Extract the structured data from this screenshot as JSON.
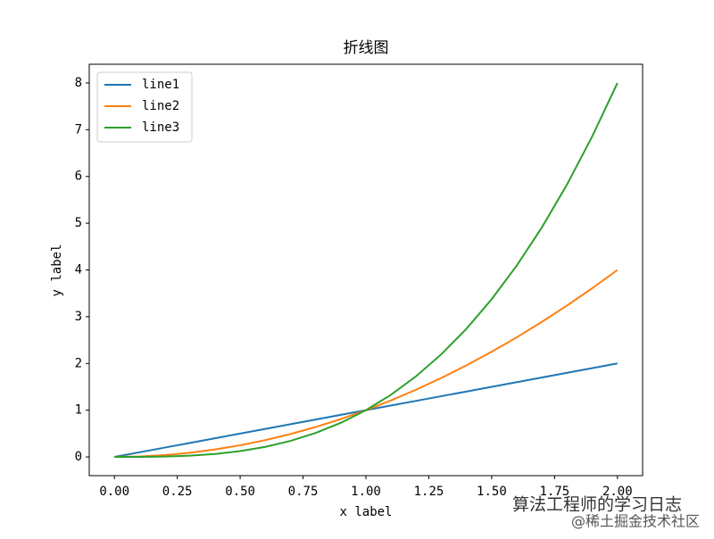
{
  "chart_data": {
    "type": "line",
    "title": "折线图",
    "xlabel": "x label",
    "ylabel": "y label",
    "x": [
      0,
      0.1,
      0.2,
      0.3,
      0.4,
      0.5,
      0.6,
      0.7,
      0.8,
      0.9,
      1,
      1.1,
      1.2,
      1.3,
      1.4,
      1.5,
      1.6,
      1.7,
      1.8,
      1.9,
      2
    ],
    "series": [
      {
        "name": "line1",
        "color": "#1f77b4",
        "values": [
          0,
          0.1,
          0.2,
          0.3,
          0.4,
          0.5,
          0.6,
          0.7,
          0.8,
          0.9,
          1,
          1.1,
          1.2,
          1.3,
          1.4,
          1.5,
          1.6,
          1.7,
          1.8,
          1.9,
          2
        ]
      },
      {
        "name": "line2",
        "color": "#ff7f0e",
        "values": [
          0,
          0.01,
          0.04,
          0.09,
          0.16,
          0.25,
          0.36,
          0.49,
          0.64,
          0.81,
          1,
          1.21,
          1.44,
          1.69,
          1.96,
          2.25,
          2.56,
          2.89,
          3.24,
          3.61,
          4
        ]
      },
      {
        "name": "line3",
        "color": "#2ca02c",
        "values": [
          0,
          0.001,
          0.008,
          0.027,
          0.064,
          0.125,
          0.216,
          0.343,
          0.512,
          0.729,
          1,
          1.331,
          1.728,
          2.197,
          2.744,
          3.375,
          4.096,
          4.913,
          5.832,
          6.859,
          8
        ]
      }
    ],
    "xlim": [
      -0.1,
      2.1
    ],
    "ylim": [
      -0.4,
      8.4
    ],
    "xticks": [
      {
        "value": 0,
        "label": "0.00"
      },
      {
        "value": 0.25,
        "label": "0.25"
      },
      {
        "value": 0.5,
        "label": "0.50"
      },
      {
        "value": 0.75,
        "label": "0.75"
      },
      {
        "value": 1,
        "label": "1.00"
      },
      {
        "value": 1.25,
        "label": "1.25"
      },
      {
        "value": 1.5,
        "label": "1.50"
      },
      {
        "value": 1.75,
        "label": "1.75"
      },
      {
        "value": 2,
        "label": "2.00"
      }
    ],
    "yticks": [
      0,
      1,
      2,
      3,
      4,
      5,
      6,
      7,
      8
    ],
    "legend": "upper left",
    "grid": false
  },
  "watermark": {
    "line1": "算法工程师的学习日志",
    "line2": "@稀土掘金技术社区"
  }
}
